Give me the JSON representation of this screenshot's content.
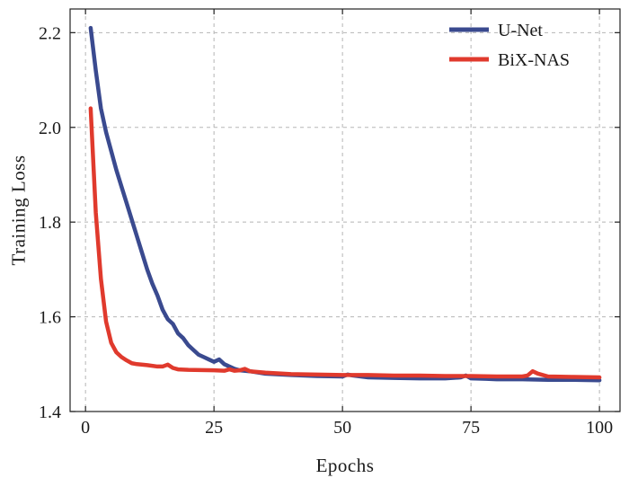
{
  "chart_data": {
    "type": "line",
    "xlabel": "Epochs",
    "ylabel": "Training Loss",
    "xlim": [
      -3,
      104
    ],
    "ylim": [
      1.4,
      2.25
    ],
    "xticks": [
      0,
      25,
      50,
      75,
      100
    ],
    "yticks": [
      1.4,
      1.6,
      1.8,
      2.0,
      2.2
    ],
    "grid": true,
    "legend_position": "top-right",
    "series": [
      {
        "name": "U-Net",
        "color": "#3a4a8f",
        "points": [
          [
            1,
            2.21
          ],
          [
            2,
            2.12
          ],
          [
            3,
            2.04
          ],
          [
            4,
            1.99
          ],
          [
            5,
            1.95
          ],
          [
            6,
            1.91
          ],
          [
            7,
            1.875
          ],
          [
            8,
            1.84
          ],
          [
            9,
            1.805
          ],
          [
            10,
            1.77
          ],
          [
            11,
            1.735
          ],
          [
            12,
            1.7
          ],
          [
            13,
            1.67
          ],
          [
            14,
            1.645
          ],
          [
            15,
            1.615
          ],
          [
            16,
            1.595
          ],
          [
            17,
            1.585
          ],
          [
            18,
            1.565
          ],
          [
            19,
            1.555
          ],
          [
            20,
            1.54
          ],
          [
            21,
            1.53
          ],
          [
            22,
            1.52
          ],
          [
            23,
            1.515
          ],
          [
            24,
            1.51
          ],
          [
            25,
            1.505
          ],
          [
            26,
            1.51
          ],
          [
            27,
            1.5
          ],
          [
            28,
            1.495
          ],
          [
            29,
            1.49
          ],
          [
            30,
            1.487
          ],
          [
            32,
            1.485
          ],
          [
            35,
            1.48
          ],
          [
            40,
            1.477
          ],
          [
            45,
            1.475
          ],
          [
            50,
            1.474
          ],
          [
            51,
            1.478
          ],
          [
            52,
            1.476
          ],
          [
            55,
            1.472
          ],
          [
            60,
            1.471
          ],
          [
            65,
            1.47
          ],
          [
            70,
            1.47
          ],
          [
            73,
            1.472
          ],
          [
            74,
            1.476
          ],
          [
            75,
            1.47
          ],
          [
            78,
            1.469
          ],
          [
            80,
            1.468
          ],
          [
            85,
            1.468
          ],
          [
            90,
            1.467
          ],
          [
            95,
            1.467
          ],
          [
            100,
            1.466
          ]
        ]
      },
      {
        "name": "BiX-NAS",
        "color": "#e03a2d",
        "points": [
          [
            1,
            2.04
          ],
          [
            2,
            1.82
          ],
          [
            3,
            1.68
          ],
          [
            4,
            1.59
          ],
          [
            5,
            1.545
          ],
          [
            6,
            1.525
          ],
          [
            7,
            1.515
          ],
          [
            8,
            1.508
          ],
          [
            9,
            1.502
          ],
          [
            10,
            1.5
          ],
          [
            12,
            1.498
          ],
          [
            14,
            1.495
          ],
          [
            15,
            1.495
          ],
          [
            16,
            1.499
          ],
          [
            17,
            1.492
          ],
          [
            18,
            1.489
          ],
          [
            20,
            1.488
          ],
          [
            25,
            1.487
          ],
          [
            27,
            1.486
          ],
          [
            28,
            1.489
          ],
          [
            29,
            1.486
          ],
          [
            30,
            1.487
          ],
          [
            31,
            1.49
          ],
          [
            32,
            1.485
          ],
          [
            35,
            1.482
          ],
          [
            40,
            1.479
          ],
          [
            45,
            1.478
          ],
          [
            50,
            1.477
          ],
          [
            55,
            1.477
          ],
          [
            60,
            1.476
          ],
          [
            65,
            1.476
          ],
          [
            70,
            1.475
          ],
          [
            75,
            1.475
          ],
          [
            80,
            1.474
          ],
          [
            85,
            1.474
          ],
          [
            86,
            1.476
          ],
          [
            87,
            1.485
          ],
          [
            88,
            1.48
          ],
          [
            89,
            1.477
          ],
          [
            90,
            1.474
          ],
          [
            95,
            1.473
          ],
          [
            100,
            1.472
          ]
        ]
      }
    ]
  }
}
